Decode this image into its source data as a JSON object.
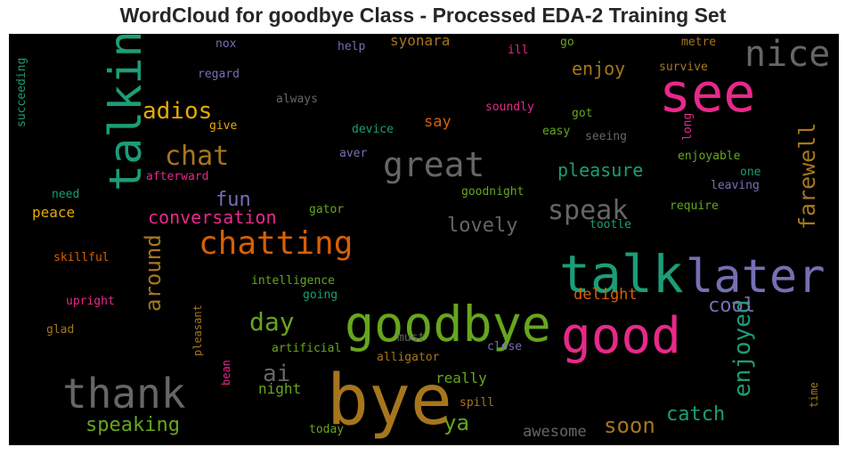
{
  "title": "WordCloud for goodbye Class - Processed EDA-2 Training Set",
  "chart_data": {
    "type": "wordcloud",
    "title": "WordCloud for goodbye Class - Processed EDA-2 Training Set",
    "background": "#000000",
    "palette": [
      "#1b9e77",
      "#d95f02",
      "#7570b3",
      "#e7298a",
      "#66a61e",
      "#e6ab02",
      "#a6761d",
      "#666666"
    ],
    "words": [
      {
        "text": "bye",
        "weight": 1.0,
        "color": "#a6761d"
      },
      {
        "text": "goodbye",
        "weight": 0.9,
        "color": "#66a61e"
      },
      {
        "text": "talk",
        "weight": 0.88,
        "color": "#1b9e77"
      },
      {
        "text": "good",
        "weight": 0.85,
        "color": "#e7298a"
      },
      {
        "text": "later",
        "weight": 0.8,
        "color": "#7570b3"
      },
      {
        "text": "see",
        "weight": 0.8,
        "color": "#e7298a"
      },
      {
        "text": "talking",
        "weight": 0.72,
        "color": "#1b9e77"
      },
      {
        "text": "thank",
        "weight": 0.72,
        "color": "#666666"
      },
      {
        "text": "nice",
        "weight": 0.6,
        "color": "#666666"
      },
      {
        "text": "great",
        "weight": 0.55,
        "color": "#666666"
      },
      {
        "text": "chatting",
        "weight": 0.55,
        "color": "#d95f02"
      },
      {
        "text": "chat",
        "weight": 0.45,
        "color": "#a6761d"
      },
      {
        "text": "speak",
        "weight": 0.43,
        "color": "#666666"
      },
      {
        "text": "enjoyed",
        "weight": 0.43,
        "color": "#1b9e77"
      },
      {
        "text": "day",
        "weight": 0.42,
        "color": "#66a61e"
      },
      {
        "text": "farewell",
        "weight": 0.4,
        "color": "#a6761d"
      },
      {
        "text": "adios",
        "weight": 0.4,
        "color": "#e6ab02"
      },
      {
        "text": "around",
        "weight": 0.37,
        "color": "#a6761d"
      },
      {
        "text": "ai",
        "weight": 0.36,
        "color": "#666666"
      },
      {
        "text": "catch",
        "weight": 0.35,
        "color": "#1b9e77"
      },
      {
        "text": "soon",
        "weight": 0.35,
        "color": "#a6761d"
      },
      {
        "text": "speaking",
        "weight": 0.33,
        "color": "#66a61e"
      },
      {
        "text": "fun",
        "weight": 0.32,
        "color": "#7570b3"
      },
      {
        "text": "ya",
        "weight": 0.32,
        "color": "#66a61e"
      },
      {
        "text": "lovely",
        "weight": 0.3,
        "color": "#666666"
      },
      {
        "text": "cool",
        "weight": 0.3,
        "color": "#7570b3"
      },
      {
        "text": "conversation",
        "weight": 0.28,
        "color": "#e7298a"
      },
      {
        "text": "pleasure",
        "weight": 0.28,
        "color": "#1b9e77"
      },
      {
        "text": "enjoy",
        "weight": 0.28,
        "color": "#a6761d"
      },
      {
        "text": "awesome",
        "weight": 0.25,
        "color": "#666666"
      },
      {
        "text": "night",
        "weight": 0.24,
        "color": "#66a61e"
      },
      {
        "text": "really",
        "weight": 0.24,
        "color": "#66a61e"
      },
      {
        "text": "delight",
        "weight": 0.24,
        "color": "#d95f02"
      },
      {
        "text": "peace",
        "weight": 0.24,
        "color": "#e6ab02"
      },
      {
        "text": "say",
        "weight": 0.23,
        "color": "#d95f02"
      },
      {
        "text": "syonara",
        "weight": 0.22,
        "color": "#a6761d"
      },
      {
        "text": "give",
        "weight": 0.18,
        "color": "#e6ab02"
      },
      {
        "text": "regard",
        "weight": 0.17,
        "color": "#7570b3"
      },
      {
        "text": "nox",
        "weight": 0.17,
        "color": "#7570b3"
      },
      {
        "text": "help",
        "weight": 0.17,
        "color": "#7570b3"
      },
      {
        "text": "ill",
        "weight": 0.17,
        "color": "#e7298a"
      },
      {
        "text": "go",
        "weight": 0.17,
        "color": "#66a61e"
      },
      {
        "text": "metre",
        "weight": 0.17,
        "color": "#a6761d"
      },
      {
        "text": "survive",
        "weight": 0.17,
        "color": "#a6761d"
      },
      {
        "text": "always",
        "weight": 0.17,
        "color": "#666666"
      },
      {
        "text": "soundly",
        "weight": 0.17,
        "color": "#e7298a"
      },
      {
        "text": "got",
        "weight": 0.17,
        "color": "#66a61e"
      },
      {
        "text": "device",
        "weight": 0.17,
        "color": "#1b9e77"
      },
      {
        "text": "easy",
        "weight": 0.17,
        "color": "#66a61e"
      },
      {
        "text": "seeing",
        "weight": 0.17,
        "color": "#666666"
      },
      {
        "text": "long",
        "weight": 0.16,
        "color": "#e7298a"
      },
      {
        "text": "aver",
        "weight": 0.16,
        "color": "#7570b3"
      },
      {
        "text": "enjoyable",
        "weight": 0.17,
        "color": "#66a61e"
      },
      {
        "text": "one",
        "weight": 0.17,
        "color": "#1b9e77"
      },
      {
        "text": "afterward",
        "weight": 0.17,
        "color": "#e7298a"
      },
      {
        "text": "leaving",
        "weight": 0.17,
        "color": "#7570b3"
      },
      {
        "text": "need",
        "weight": 0.17,
        "color": "#1b9e77"
      },
      {
        "text": "goodnight",
        "weight": 0.17,
        "color": "#66a61e"
      },
      {
        "text": "require",
        "weight": 0.17,
        "color": "#66a61e"
      },
      {
        "text": "gator",
        "weight": 0.17,
        "color": "#66a61e"
      },
      {
        "text": "tootle",
        "weight": 0.17,
        "color": "#1b9e77"
      },
      {
        "text": "skillful",
        "weight": 0.17,
        "color": "#d95f02"
      },
      {
        "text": "intelligence",
        "weight": 0.17,
        "color": "#66a61e"
      },
      {
        "text": "going",
        "weight": 0.17,
        "color": "#1b9e77"
      },
      {
        "text": "upright",
        "weight": 0.17,
        "color": "#e7298a"
      },
      {
        "text": "pleasant",
        "weight": 0.16,
        "color": "#a6761d"
      },
      {
        "text": "glad",
        "weight": 0.17,
        "color": "#a6761d"
      },
      {
        "text": "artificial",
        "weight": 0.17,
        "color": "#66a61e"
      },
      {
        "text": "must",
        "weight": 0.17,
        "color": "#666666"
      },
      {
        "text": "close",
        "weight": 0.17,
        "color": "#7570b3"
      },
      {
        "text": "alligator",
        "weight": 0.17,
        "color": "#a6761d"
      },
      {
        "text": "bean",
        "weight": 0.16,
        "color": "#e7298a"
      },
      {
        "text": "spill",
        "weight": 0.17,
        "color": "#a6761d"
      },
      {
        "text": "today",
        "weight": 0.17,
        "color": "#66a61e"
      },
      {
        "text": "time",
        "weight": 0.16,
        "color": "#a6761d"
      },
      {
        "text": "succeeding",
        "weight": 0.16,
        "color": "#1b9e77"
      }
    ]
  }
}
